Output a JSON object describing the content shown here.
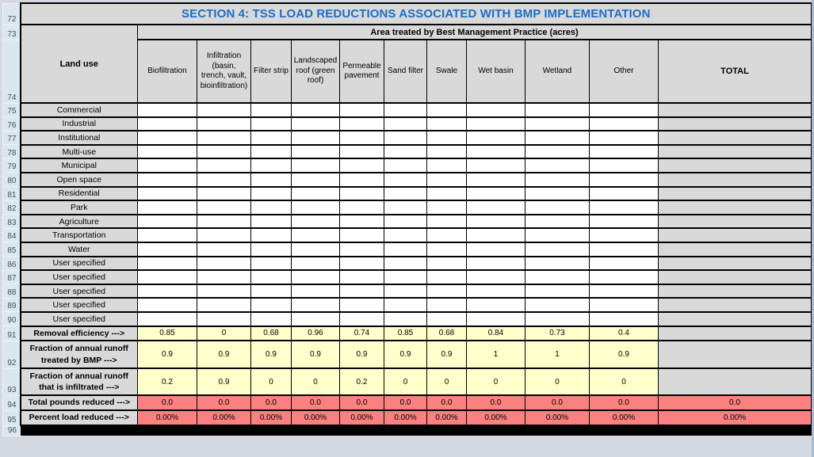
{
  "title": "SECTION 4: TSS LOAD REDUCTIONS ASSOCIATED WITH BMP IMPLEMENTATION",
  "banner": "Area treated by Best Management Practice (acres)",
  "row_numbers": [
    "72",
    "73",
    "74",
    "75",
    "76",
    "77",
    "78",
    "79",
    "80",
    "81",
    "82",
    "83",
    "84",
    "85",
    "86",
    "87",
    "88",
    "89",
    "90",
    "91",
    "92",
    "93",
    "94",
    "95",
    "96"
  ],
  "columns": {
    "landuse_header": "Land use",
    "bmp_headers": [
      "Biofiltration",
      "Infiltration (basin, trench, vault, bioinfiltration)",
      "Filter strip",
      "Landscaped roof (green roof)",
      "Permeable pavement",
      "Sand filter",
      "Swale",
      "Wet basin",
      "Wetland",
      "Other"
    ],
    "total_header": "TOTAL"
  },
  "landuse_rows": [
    "Commercial",
    "Industrial",
    "Institutional",
    "Multi-use",
    "Municipal",
    "Open space",
    "Residential",
    "Park",
    "Agriculture",
    "Transportation",
    "Water",
    "User specified",
    "User specified",
    "User specified",
    "User specified",
    "User specified"
  ],
  "param_rows": [
    {
      "label": "Removal efficiency --->",
      "values": [
        "0.85",
        "0",
        "0.68",
        "0.96",
        "0.74",
        "0.85",
        "0.68",
        "0.84",
        "0.73",
        "0.4"
      ],
      "total": ""
    },
    {
      "label": "Fraction of annual runoff treated by BMP --->",
      "values": [
        "0.9",
        "0.9",
        "0.9",
        "0.9",
        "0.9",
        "0.9",
        "0.9",
        "1",
        "1",
        "0.9"
      ],
      "total": ""
    },
    {
      "label": "Fraction of annual runoff that is infiltrated --->",
      "values": [
        "0.2",
        "0.9",
        "0",
        "0",
        "0.2",
        "0",
        "0",
        "0",
        "0",
        "0"
      ],
      "total": ""
    }
  ],
  "result_rows": [
    {
      "label": "Total pounds reduced --->",
      "values": [
        "0.0",
        "0.0",
        "0.0",
        "0.0",
        "0.0",
        "0.0",
        "0.0",
        "0.0",
        "0.0",
        "0.0",
        "0.0"
      ]
    },
    {
      "label": "Percent load reduced --->",
      "values": [
        "0.00%",
        "0.00%",
        "0.00%",
        "0.00%",
        "0.00%",
        "0.00%",
        "0.00%",
        "0.00%",
        "0.00%",
        "0.00%",
        "0.00%"
      ]
    }
  ],
  "colors": {
    "title_accent": "#1b6ec8",
    "header_fill": "#d9d9d9",
    "input_fill": "#ffffcc",
    "result_fill": "#fb8080",
    "rownum_fill": "#dce6f1",
    "grid_line": "#000000"
  }
}
